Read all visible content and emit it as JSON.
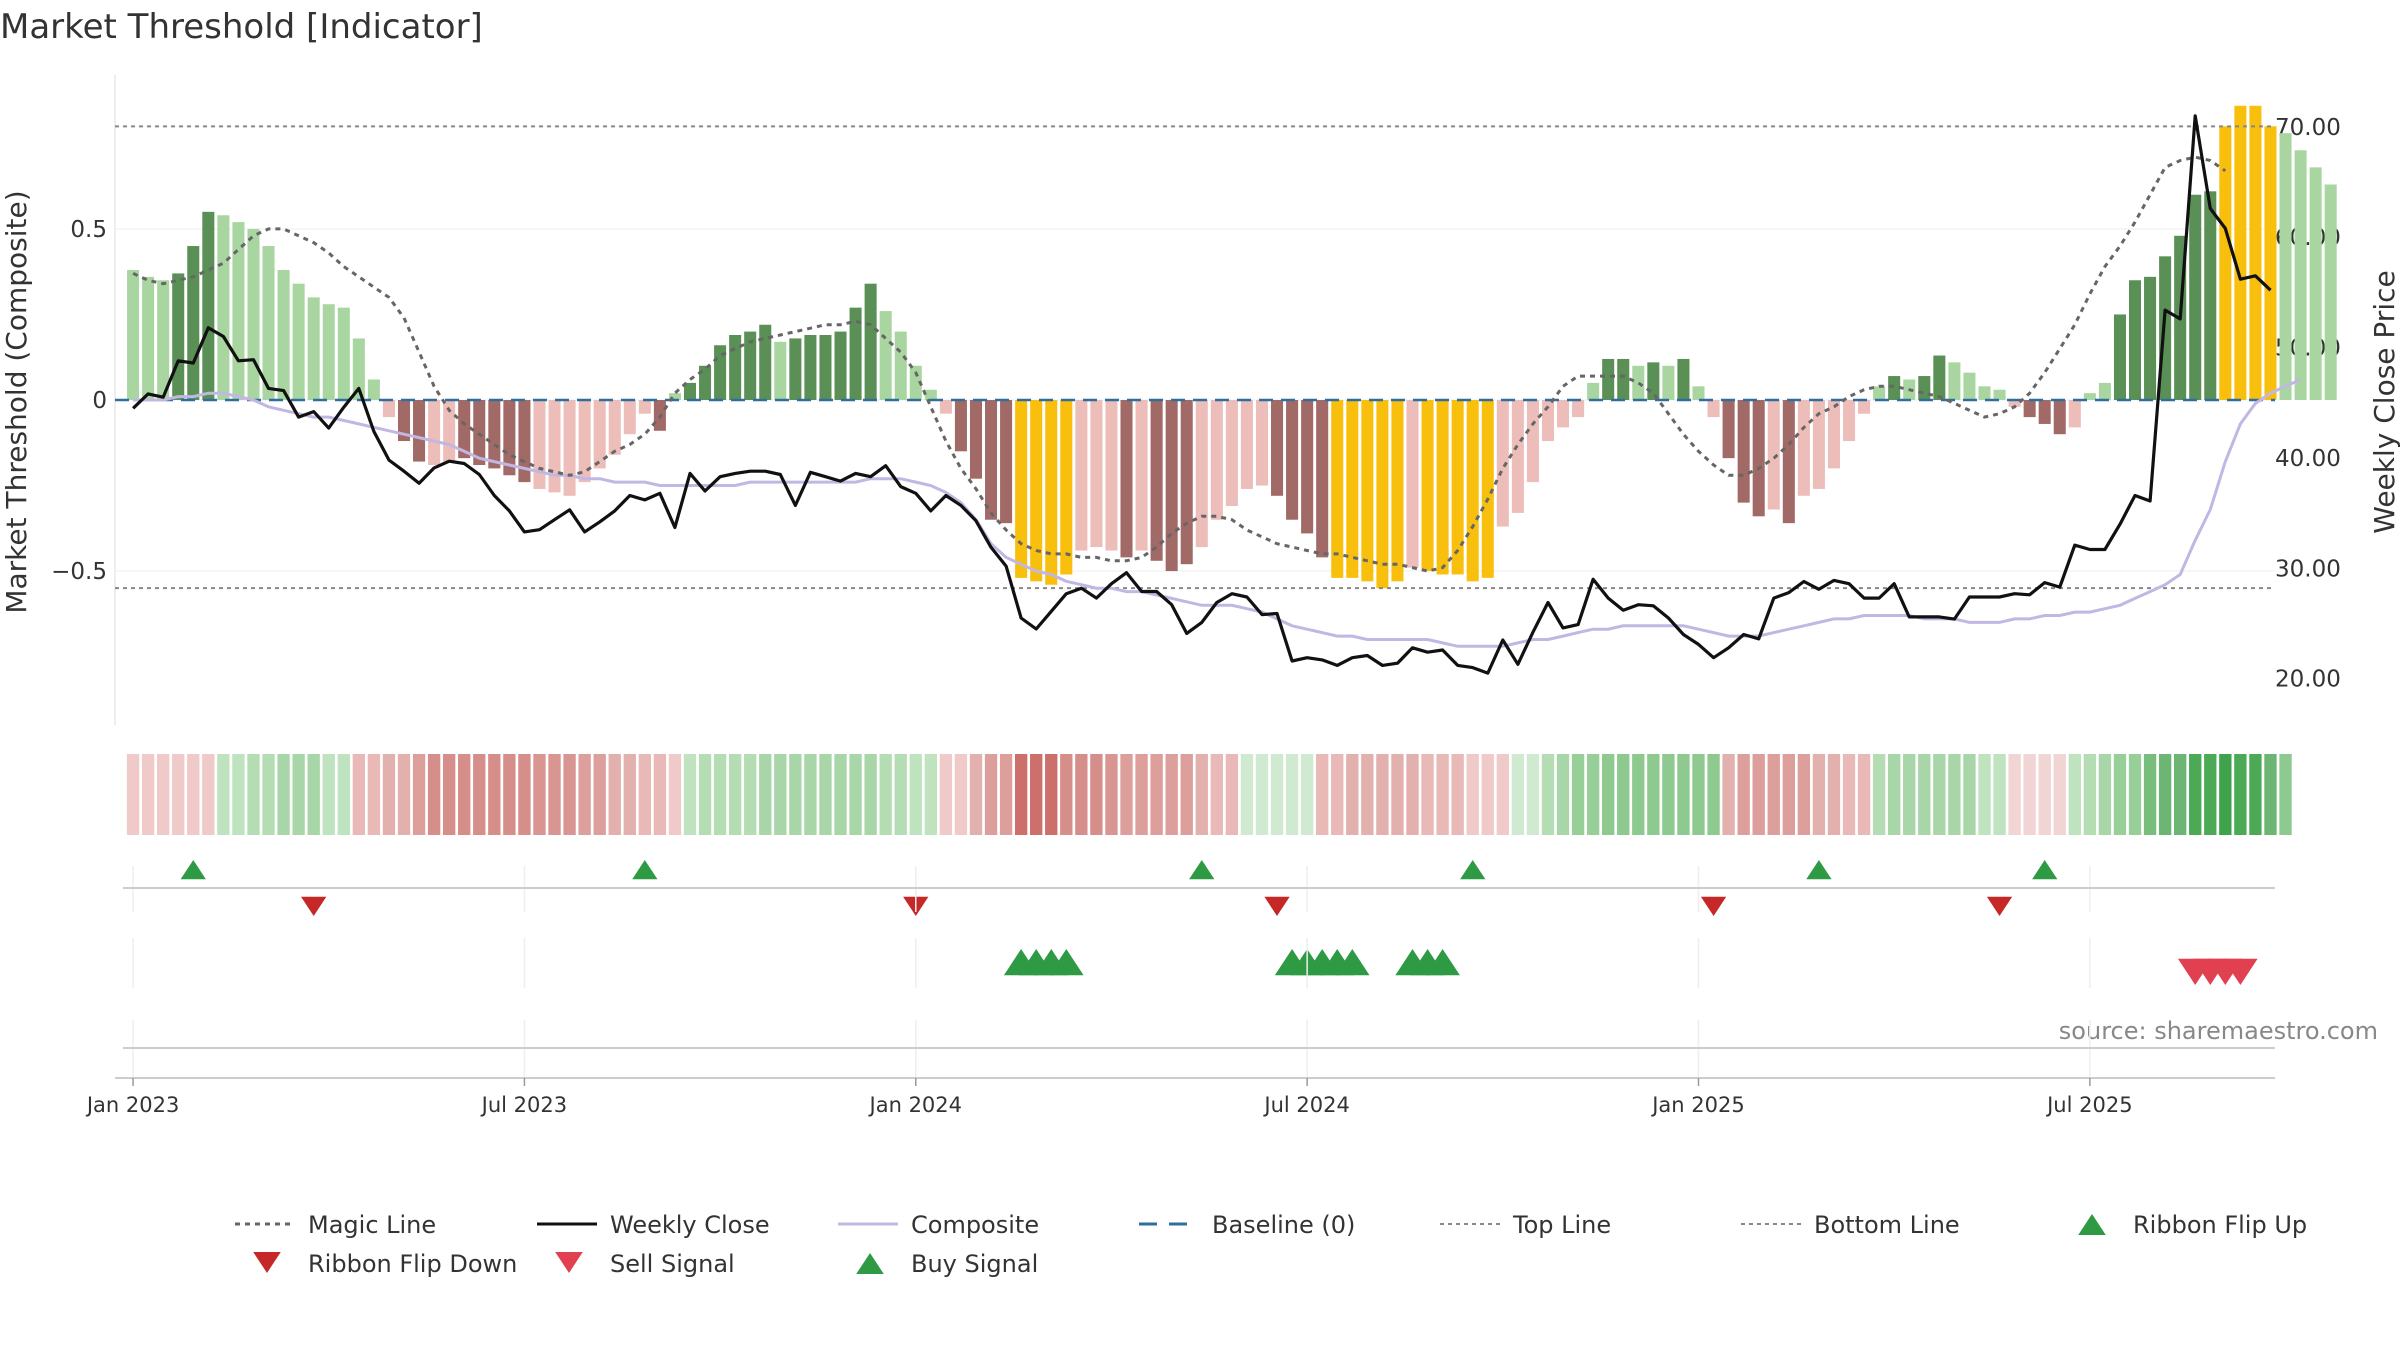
{
  "chart_data": {
    "type": "bar",
    "title": "Market Threshold [Indicator]",
    "ylabel_left": "Market Threshold (Composite)",
    "ylabel_right": "Weekly Close Price",
    "source": "source: sharemaestro.com",
    "x_ticks": [
      "Jan 2023",
      "Jul 2023",
      "Jan 2024",
      "Jul 2024",
      "Jan 2025",
      "Jul 2025"
    ],
    "x_tick_weeks": [
      0,
      26,
      52,
      78,
      104,
      130
    ],
    "left_ticks": [
      {
        "v": 0.5,
        "label": "0.5"
      },
      {
        "v": 0,
        "label": "0"
      },
      {
        "v": -0.5,
        "label": "−0.5"
      }
    ],
    "right_ticks": [
      {
        "v": 70,
        "label": "70.00"
      },
      {
        "v": 60,
        "label": "60.00"
      },
      {
        "v": 50,
        "label": "50.00"
      },
      {
        "v": 40,
        "label": "40.00"
      },
      {
        "v": 30,
        "label": "30.00"
      },
      {
        "v": 20,
        "label": "20.00"
      }
    ],
    "left_range": [
      -0.95,
      0.95
    ],
    "right_range": [
      15.8,
      74.7
    ],
    "week_range": [
      -1.2,
      142.3
    ],
    "top_line": 0.8,
    "bottom_line": -0.55,
    "magic_line": [
      0.37,
      0.35,
      0.34,
      0.35,
      0.36,
      0.38,
      0.4,
      0.44,
      0.48,
      0.5,
      0.5,
      0.48,
      0.46,
      0.43,
      0.39,
      0.36,
      0.33,
      0.3,
      0.24,
      0.14,
      0.04,
      -0.03,
      -0.07,
      -0.1,
      -0.13,
      -0.16,
      -0.18,
      -0.2,
      -0.21,
      -0.22,
      -0.21,
      -0.18,
      -0.15,
      -0.13,
      -0.1,
      -0.05,
      0.02,
      0.06,
      0.09,
      0.13,
      0.15,
      0.17,
      0.18,
      0.19,
      0.2,
      0.21,
      0.22,
      0.22,
      0.23,
      0.22,
      0.18,
      0.14,
      0.08,
      -0.02,
      -0.12,
      -0.2,
      -0.26,
      -0.33,
      -0.38,
      -0.42,
      -0.44,
      -0.45,
      -0.45,
      -0.46,
      -0.46,
      -0.47,
      -0.47,
      -0.46,
      -0.43,
      -0.39,
      -0.36,
      -0.34,
      -0.34,
      -0.35,
      -0.38,
      -0.4,
      -0.42,
      -0.43,
      -0.44,
      -0.45,
      -0.45,
      -0.46,
      -0.47,
      -0.48,
      -0.48,
      -0.49,
      -0.5,
      -0.49,
      -0.44,
      -0.37,
      -0.29,
      -0.2,
      -0.13,
      -0.07,
      -0.02,
      0.04,
      0.07,
      0.07,
      0.07,
      0.07,
      0.05,
      0.02,
      -0.04,
      -0.1,
      -0.15,
      -0.19,
      -0.22,
      -0.22,
      -0.2,
      -0.17,
      -0.13,
      -0.08,
      -0.04,
      -0.02,
      0.01,
      0.03,
      0.04,
      0.04,
      0.03,
      0.02,
      0.01,
      -0.01,
      -0.03,
      -0.05,
      -0.04,
      -0.02,
      0.02,
      0.08,
      0.15,
      0.22,
      0.31,
      0.39,
      0.45,
      0.52,
      0.6,
      0.68,
      0.7,
      0.71,
      0.7,
      0.67
    ],
    "composite_bars": [
      0.38,
      0.36,
      0.35,
      0.37,
      0.45,
      0.55,
      0.54,
      0.52,
      0.5,
      0.45,
      0.38,
      0.34,
      0.3,
      0.28,
      0.27,
      0.18,
      0.06,
      -0.05,
      -0.12,
      -0.18,
      -0.19,
      -0.18,
      -0.17,
      -0.19,
      -0.2,
      -0.22,
      -0.24,
      -0.26,
      -0.27,
      -0.28,
      -0.24,
      -0.2,
      -0.16,
      -0.1,
      -0.04,
      -0.09,
      0.02,
      0.05,
      0.1,
      0.16,
      0.19,
      0.2,
      0.22,
      0.17,
      0.18,
      0.19,
      0.19,
      0.2,
      0.27,
      0.34,
      0.26,
      0.2,
      0.1,
      0.03,
      -0.04,
      -0.15,
      -0.23,
      -0.35,
      -0.36,
      -0.52,
      -0.53,
      -0.54,
      -0.51,
      -0.44,
      -0.43,
      -0.44,
      -0.46,
      -0.44,
      -0.47,
      -0.5,
      -0.48,
      -0.43,
      -0.35,
      -0.31,
      -0.26,
      -0.25,
      -0.28,
      -0.35,
      -0.39,
      -0.46,
      -0.52,
      -0.52,
      -0.53,
      -0.55,
      -0.53,
      -0.49,
      -0.5,
      -0.51,
      -0.51,
      -0.53,
      -0.52,
      -0.37,
      -0.33,
      -0.24,
      -0.12,
      -0.08,
      -0.05,
      0.05,
      0.12,
      0.12,
      0.1,
      0.11,
      0.1,
      0.12,
      0.04,
      -0.05,
      -0.17,
      -0.3,
      -0.34,
      -0.32,
      -0.36,
      -0.28,
      -0.26,
      -0.2,
      -0.12,
      -0.04,
      0.04,
      0.07,
      0.06,
      0.07,
      0.13,
      0.11,
      0.08,
      0.04,
      0.03,
      -0.02,
      -0.05,
      -0.07,
      -0.1,
      -0.08,
      0.02,
      0.05,
      0.25,
      0.35,
      0.36,
      0.42,
      0.48,
      0.6,
      0.61,
      0.8,
      0.86,
      0.86,
      0.8,
      0.78,
      0.73,
      0.68,
      0.63
    ],
    "bar_colors": [
      "#a9d6a0",
      "#a9d6a0",
      "#a9d6a0",
      "#5a8f56",
      "#5a8f56",
      "#5a8f56",
      "#a9d6a0",
      "#a9d6a0",
      "#a9d6a0",
      "#a9d6a0",
      "#a9d6a0",
      "#a9d6a0",
      "#a9d6a0",
      "#a9d6a0",
      "#a9d6a0",
      "#a9d6a0",
      "#a9d6a0",
      "#ecbdb9",
      "#a26a66",
      "#a26a66",
      "#ecbdb9",
      "#ecbdb9",
      "#a26a66",
      "#a26a66",
      "#a26a66",
      "#a26a66",
      "#a26a66",
      "#ecbdb9",
      "#ecbdb9",
      "#ecbdb9",
      "#ecbdb9",
      "#ecbdb9",
      "#ecbdb9",
      "#ecbdb9",
      "#ecbdb9",
      "#a26a66",
      "#a9d6a0",
      "#5a8f56",
      "#5a8f56",
      "#5a8f56",
      "#5a8f56",
      "#5a8f56",
      "#5a8f56",
      "#a9d6a0",
      "#5a8f56",
      "#5a8f56",
      "#5a8f56",
      "#5a8f56",
      "#5a8f56",
      "#5a8f56",
      "#a9d6a0",
      "#a9d6a0",
      "#a9d6a0",
      "#a9d6a0",
      "#ecbdb9",
      "#a26a66",
      "#a26a66",
      "#a26a66",
      "#a26a66",
      "#f9bf0d",
      "#f9bf0d",
      "#f9bf0d",
      "#f9bf0d",
      "#ecbdb9",
      "#ecbdb9",
      "#ecbdb9",
      "#a26a66",
      "#ecbdb9",
      "#a26a66",
      "#a26a66",
      "#a26a66",
      "#ecbdb9",
      "#ecbdb9",
      "#ecbdb9",
      "#ecbdb9",
      "#ecbdb9",
      "#a26a66",
      "#a26a66",
      "#a26a66",
      "#a26a66",
      "#f9bf0d",
      "#f9bf0d",
      "#f9bf0d",
      "#f9bf0d",
      "#f9bf0d",
      "#ecbdb9",
      "#f9bf0d",
      "#f9bf0d",
      "#f9bf0d",
      "#f9bf0d",
      "#f9bf0d",
      "#ecbdb9",
      "#ecbdb9",
      "#ecbdb9",
      "#ecbdb9",
      "#ecbdb9",
      "#ecbdb9",
      "#a9d6a0",
      "#5a8f56",
      "#5a8f56",
      "#a9d6a0",
      "#5a8f56",
      "#a9d6a0",
      "#5a8f56",
      "#a9d6a0",
      "#ecbdb9",
      "#a26a66",
      "#a26a66",
      "#a26a66",
      "#ecbdb9",
      "#a26a66",
      "#ecbdb9",
      "#ecbdb9",
      "#ecbdb9",
      "#ecbdb9",
      "#ecbdb9",
      "#a9d6a0",
      "#5a8f56",
      "#a9d6a0",
      "#5a8f56",
      "#5a8f56",
      "#a9d6a0",
      "#a9d6a0",
      "#a9d6a0",
      "#a9d6a0",
      "#ecbdb9",
      "#a26a66",
      "#a26a66",
      "#a26a66",
      "#ecbdb9",
      "#a9d6a0",
      "#a9d6a0",
      "#5a8f56",
      "#5a8f56",
      "#5a8f56",
      "#5a8f56",
      "#5a8f56",
      "#5a8f56",
      "#5a8f56",
      "#f9bf0d",
      "#f9bf0d",
      "#f9bf0d",
      "#f9bf0d",
      "#a9d6a0",
      "#a9d6a0",
      "#a9d6a0",
      "#a9d6a0"
    ],
    "composite_line": [
      0,
      0,
      0,
      0.01,
      0.01,
      0.02,
      0.02,
      0.01,
      0,
      -0.02,
      -0.03,
      -0.04,
      -0.05,
      -0.05,
      -0.06,
      -0.07,
      -0.08,
      -0.09,
      -0.1,
      -0.11,
      -0.12,
      -0.13,
      -0.15,
      -0.17,
      -0.18,
      -0.19,
      -0.2,
      -0.21,
      -0.22,
      -0.22,
      -0.23,
      -0.23,
      -0.24,
      -0.24,
      -0.24,
      -0.25,
      -0.25,
      -0.25,
      -0.25,
      -0.25,
      -0.25,
      -0.24,
      -0.24,
      -0.24,
      -0.24,
      -0.24,
      -0.24,
      -0.24,
      -0.24,
      -0.23,
      -0.23,
      -0.23,
      -0.24,
      -0.25,
      -0.27,
      -0.3,
      -0.35,
      -0.42,
      -0.46,
      -0.48,
      -0.5,
      -0.51,
      -0.53,
      -0.54,
      -0.55,
      -0.55,
      -0.56,
      -0.56,
      -0.57,
      -0.58,
      -0.59,
      -0.6,
      -0.6,
      -0.6,
      -0.61,
      -0.62,
      -0.64,
      -0.66,
      -0.67,
      -0.68,
      -0.69,
      -0.69,
      -0.7,
      -0.7,
      -0.7,
      -0.7,
      -0.7,
      -0.71,
      -0.72,
      -0.72,
      -0.72,
      -0.72,
      -0.71,
      -0.7,
      -0.7,
      -0.69,
      -0.68,
      -0.67,
      -0.67,
      -0.66,
      -0.66,
      -0.66,
      -0.66,
      -0.66,
      -0.67,
      -0.68,
      -0.69,
      -0.69,
      -0.69,
      -0.68,
      -0.67,
      -0.66,
      -0.65,
      -0.64,
      -0.64,
      -0.63,
      -0.63,
      -0.63,
      -0.63,
      -0.64,
      -0.64,
      -0.64,
      -0.65,
      -0.65,
      -0.65,
      -0.64,
      -0.64,
      -0.63,
      -0.63,
      -0.62,
      -0.62,
      -0.61,
      -0.6,
      -0.58,
      -0.56,
      -0.54,
      -0.51,
      -0.41,
      -0.32,
      -0.18,
      -0.07,
      -0.01,
      0.02,
      0.04,
      0.06
    ],
    "weekly_close": [
      44.5,
      45.8,
      45.5,
      48.8,
      48.6,
      51.8,
      51.0,
      48.8,
      48.9,
      46.3,
      46.1,
      43.7,
      44.2,
      42.7,
      44.6,
      46.3,
      42.4,
      39.8,
      38.8,
      37.7,
      39.1,
      39.7,
      39.5,
      38.5,
      36.6,
      35.2,
      33.3,
      33.5,
      34.4,
      35.3,
      33.3,
      34.2,
      35.2,
      36.6,
      36.2,
      36.8,
      33.7,
      38.6,
      37.0,
      38.3,
      38.6,
      38.8,
      38.8,
      38.5,
      35.7,
      38.7,
      38.3,
      37.9,
      38.6,
      38.3,
      39.3,
      37.4,
      36.8,
      35.2,
      36.6,
      35.7,
      34.3,
      31.9,
      30.2,
      25.5,
      24.5,
      26.1,
      27.7,
      28.2,
      27.3,
      28.6,
      29.6,
      27.9,
      27.9,
      26.7,
      24.1,
      25.1,
      26.9,
      27.7,
      27.4,
      25.8,
      25.9,
      21.6,
      21.9,
      21.7,
      21.2,
      21.9,
      22.1,
      21.2,
      21.4,
      22.8,
      22.4,
      22.6,
      21.2,
      21.0,
      20.5,
      23.5,
      21.3,
      24.2,
      26.9,
      24.6,
      24.9,
      29.0,
      27.3,
      26.2,
      26.7,
      26.6,
      25.5,
      24.0,
      23.1,
      21.9,
      22.8,
      24.0,
      23.6,
      27.3,
      27.8,
      28.8,
      28.1,
      28.9,
      28.6,
      27.3,
      27.3,
      28.6,
      25.6,
      25.6,
      25.6,
      25.4,
      27.4,
      27.4,
      27.4,
      27.7,
      27.6,
      28.7,
      28.3,
      32.1,
      31.7,
      31.7,
      34.0,
      36.6,
      36.1,
      53.4,
      52.6,
      71.0,
      62.6,
      60.8,
      56.2,
      56.5,
      55.2
    ],
    "ribbon_colors": [
      "#f0cac8",
      "#f0cac8",
      "#f0cac8",
      "#f0cac8",
      "#f0cac8",
      "#f0cac8",
      "#bfe3bf",
      "#bfe3bf",
      "#b5ddb4",
      "#b5ddb4",
      "#a9d6a8",
      "#a9d6a8",
      "#a9d6a8",
      "#bfe3bf",
      "#bfe3bf",
      "#e8b9b6",
      "#e8b9b6",
      "#e3b1ad",
      "#e3b1ad",
      "#dc9f9b",
      "#d68e8a",
      "#d68e8a",
      "#d68e8a",
      "#d68e8a",
      "#d68e8a",
      "#d68e8a",
      "#d68e8a",
      "#d89592",
      "#d89592",
      "#d89592",
      "#dc9f9b",
      "#dc9f9b",
      "#e3b1ad",
      "#e3b1ad",
      "#e8b9b6",
      "#e8b9b6",
      "#f0cac8",
      "#bfe3bf",
      "#b5ddb4",
      "#b5ddb4",
      "#b5ddb4",
      "#b5ddb4",
      "#a9d6a8",
      "#a9d6a8",
      "#a9d6a8",
      "#a9d6a8",
      "#a9d6a8",
      "#a9d6a8",
      "#a9d6a8",
      "#a9d6a8",
      "#b5ddb4",
      "#b5ddb4",
      "#bfe3bf",
      "#bfe3bf",
      "#f0cac8",
      "#f0cac8",
      "#e3b1ad",
      "#dc9f9b",
      "#dc9f9b",
      "#cd6f6b",
      "#cd6f6b",
      "#cd6f6b",
      "#d68e8a",
      "#d68e8a",
      "#d68e8a",
      "#d89592",
      "#dc9f9b",
      "#dc9f9b",
      "#dc9f9b",
      "#dc9f9b",
      "#dc9f9b",
      "#e3b1ad",
      "#e8b9b6",
      "#e8b9b6",
      "#cfead0",
      "#cfead0",
      "#cfead0",
      "#cfead0",
      "#cfead0",
      "#e8b9b6",
      "#e8b9b6",
      "#e3b1ad",
      "#e3b1ad",
      "#e3b1ad",
      "#e3b1ad",
      "#e3b1ad",
      "#e8b9b6",
      "#e8b9b6",
      "#e8b9b6",
      "#f0cac8",
      "#f0cac8",
      "#f0cac8",
      "#cfead0",
      "#cfead0",
      "#b5ddb4",
      "#a9d6a8",
      "#98cf98",
      "#98cf98",
      "#8ec98f",
      "#8ec98f",
      "#8ec98f",
      "#8ec98f",
      "#8ec98f",
      "#8ec98f",
      "#8ec98f",
      "#8ec98f",
      "#e3b1ad",
      "#dc9f9b",
      "#dc9f9b",
      "#dc9f9b",
      "#dc9f9b",
      "#dc9f9b",
      "#e3b1ad",
      "#e3b1ad",
      "#e8b9b6",
      "#e8b9b6",
      "#b5ddb4",
      "#a9d6a8",
      "#a9d6a8",
      "#a9d6a8",
      "#a9d6a8",
      "#a9d6a8",
      "#a9d6a8",
      "#bfe3bf",
      "#bfe3bf",
      "#f0d5d4",
      "#f0d5d4",
      "#f0d5d4",
      "#f0d5d4",
      "#bfe3bf",
      "#b5ddb4",
      "#a9d6a8",
      "#98cf98",
      "#98cf98",
      "#78bd7c",
      "#6db572",
      "#6db572",
      "#4caa57",
      "#4caa57",
      "#3fa34d",
      "#4caa57",
      "#4caa57",
      "#6db572",
      "#8ec98f"
    ],
    "ribbon_flip_up": [
      4,
      34,
      71,
      89,
      112,
      127
    ],
    "ribbon_flip_down": [
      12,
      52,
      76,
      105,
      124
    ],
    "buy_signal": [
      59,
      60,
      61,
      62,
      77,
      78,
      79,
      80,
      81,
      85,
      86,
      87
    ],
    "sell_signal": [
      137,
      138,
      139,
      140
    ],
    "legend": [
      {
        "label": "Magic Line",
        "kind": "dotted",
        "color": "#666666"
      },
      {
        "label": "Weekly Close",
        "kind": "line",
        "color": "#111111"
      },
      {
        "label": "Composite",
        "kind": "line",
        "color": "#c2b7e3"
      },
      {
        "label": "Baseline (0)",
        "kind": "dashed",
        "color": "#2f6f9f"
      },
      {
        "label": "Top Line",
        "kind": "dotted-thin",
        "color": "#888888"
      },
      {
        "label": "Bottom Line",
        "kind": "dotted-thin",
        "color": "#888888"
      },
      {
        "label": "Ribbon Flip Up",
        "kind": "tri-up",
        "color": "#2e9b44"
      },
      {
        "label": "Ribbon Flip Down",
        "kind": "tri-down",
        "color": "#c62828"
      },
      {
        "label": "Sell Signal",
        "kind": "tri-down",
        "color": "#e04050"
      },
      {
        "label": "Buy Signal",
        "kind": "tri-up",
        "color": "#2e9b44"
      }
    ],
    "colors": {
      "magic_line": "#666666",
      "weekly_close": "#111111",
      "composite_line": "#c2b7e3",
      "baseline": "#2f6f9f",
      "threshold_lines": "#888888",
      "flip_up": "#2e9b44",
      "flip_down": "#c62828",
      "sell": "#e04050",
      "buy": "#2e9b44"
    }
  }
}
